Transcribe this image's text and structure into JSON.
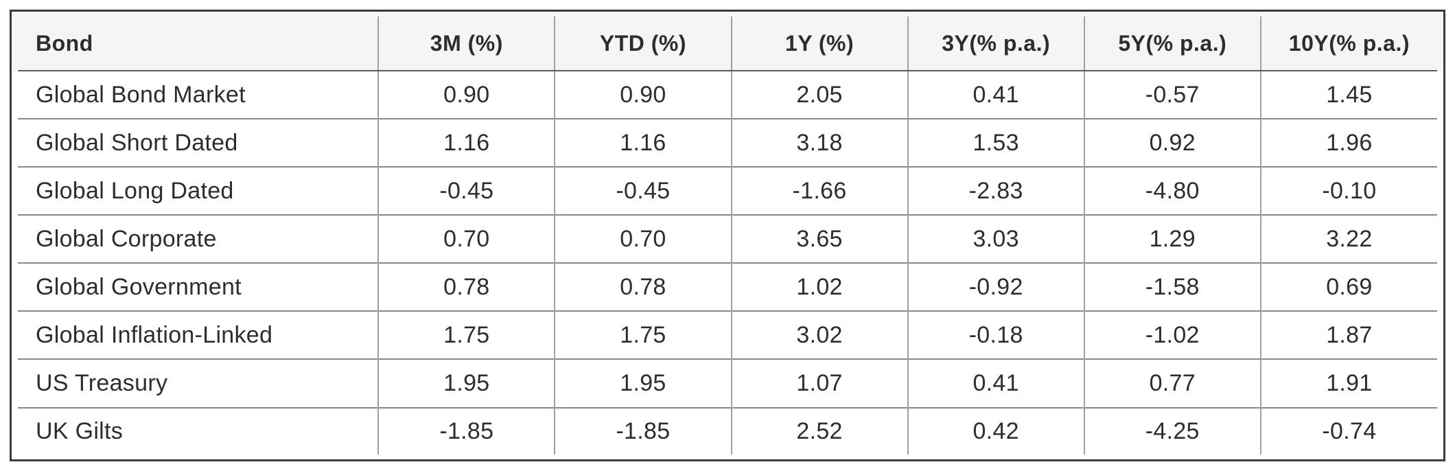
{
  "chart_data": {
    "type": "table",
    "title": "",
    "columns": [
      "Bond",
      "3M (%)",
      "YTD (%)",
      "1Y (%)",
      "3Y(% p.a.)",
      "5Y(% p.a.)",
      "10Y(% p.a.)"
    ],
    "rows": [
      [
        "Global Bond Market",
        "0.90",
        "0.90",
        "2.05",
        "0.41",
        "-0.57",
        "1.45"
      ],
      [
        "Global Short Dated",
        "1.16",
        "1.16",
        "3.18",
        "1.53",
        "0.92",
        "1.96"
      ],
      [
        "Global Long Dated",
        "-0.45",
        "-0.45",
        "-1.66",
        "-2.83",
        "-4.80",
        "-0.10"
      ],
      [
        "Global Corporate",
        "0.70",
        "0.70",
        "3.65",
        "3.03",
        "1.29",
        "3.22"
      ],
      [
        "Global Government",
        "0.78",
        "0.78",
        "1.02",
        "-0.92",
        "-1.58",
        "0.69"
      ],
      [
        "Global Inflation-Linked",
        "1.75",
        "1.75",
        "3.02",
        "-0.18",
        "-1.02",
        "1.87"
      ],
      [
        "US Treasury",
        "1.95",
        "1.95",
        "1.07",
        "0.41",
        "0.77",
        "1.91"
      ],
      [
        "UK Gilts",
        "-1.85",
        "-1.85",
        "2.52",
        "0.42",
        "-4.25",
        "-0.74"
      ]
    ]
  },
  "colors": {
    "frame_border": "#3b3b3b",
    "header_background": "#f5f5f5",
    "header_separator": "#5c5c5c",
    "row_separator": "#888888",
    "column_separator": "#a0a0a0",
    "text": "#2d2d2d",
    "body_background": "#ffffff"
  }
}
